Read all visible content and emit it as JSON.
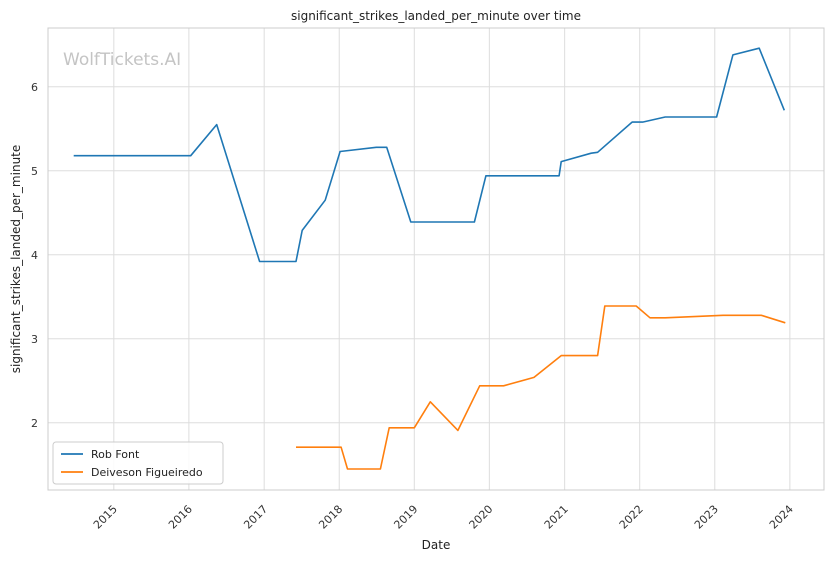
{
  "watermark": "WolfTickets.AI",
  "chart_data": {
    "type": "line",
    "title": "significant_strikes_landed_per_minute over time",
    "xlabel": "Date",
    "ylabel": "significant_strikes_landed_per_minute",
    "x_ticks": [
      "2015",
      "2016",
      "2017",
      "2018",
      "2019",
      "2020",
      "2021",
      "2022",
      "2023",
      "2024"
    ],
    "y_ticks": [
      "2",
      "3",
      "4",
      "5",
      "6"
    ],
    "xlim": [
      "2014-02-15",
      "2024-06-15"
    ],
    "ylim": [
      1.2,
      6.7
    ],
    "grid": true,
    "legend": "lower-left",
    "series": [
      {
        "name": "Rob Font",
        "color": "#1f77b4",
        "points": [
          [
            "2014-06-20",
            5.18
          ],
          [
            "2016-01-10",
            5.18
          ],
          [
            "2016-05-15",
            5.55
          ],
          [
            "2016-12-10",
            3.92
          ],
          [
            "2017-06-05",
            3.92
          ],
          [
            "2017-07-05",
            4.29
          ],
          [
            "2017-10-25",
            4.65
          ],
          [
            "2018-01-05",
            5.23
          ],
          [
            "2018-06-30",
            5.28
          ],
          [
            "2018-08-20",
            5.28
          ],
          [
            "2018-12-15",
            4.39
          ],
          [
            "2019-10-20",
            4.39
          ],
          [
            "2019-12-15",
            4.94
          ],
          [
            "2020-12-05",
            4.94
          ],
          [
            "2020-12-15",
            5.11
          ],
          [
            "2021-05-10",
            5.21
          ],
          [
            "2021-06-10",
            5.22
          ],
          [
            "2021-11-25",
            5.58
          ],
          [
            "2022-01-15",
            5.58
          ],
          [
            "2022-05-05",
            5.64
          ],
          [
            "2023-01-10",
            5.64
          ],
          [
            "2023-03-30",
            6.38
          ],
          [
            "2023-08-05",
            6.46
          ],
          [
            "2023-12-05",
            5.72
          ]
        ]
      },
      {
        "name": "Deiveson Figueiredo",
        "color": "#ff7f0e",
        "points": [
          [
            "2017-06-05",
            1.71
          ],
          [
            "2018-01-10",
            1.71
          ],
          [
            "2018-02-10",
            1.45
          ],
          [
            "2018-07-20",
            1.45
          ],
          [
            "2018-09-01",
            1.94
          ],
          [
            "2019-01-01",
            1.94
          ],
          [
            "2019-03-20",
            2.25
          ],
          [
            "2019-08-01",
            1.91
          ],
          [
            "2019-11-15",
            2.44
          ],
          [
            "2020-03-10",
            2.44
          ],
          [
            "2020-08-05",
            2.54
          ],
          [
            "2020-12-15",
            2.8
          ],
          [
            "2021-06-10",
            2.8
          ],
          [
            "2021-07-15",
            3.39
          ],
          [
            "2021-12-15",
            3.39
          ],
          [
            "2022-02-20",
            3.25
          ],
          [
            "2022-05-05",
            3.25
          ],
          [
            "2023-02-10",
            3.28
          ],
          [
            "2023-08-15",
            3.28
          ],
          [
            "2023-12-10",
            3.19
          ]
        ]
      }
    ]
  }
}
